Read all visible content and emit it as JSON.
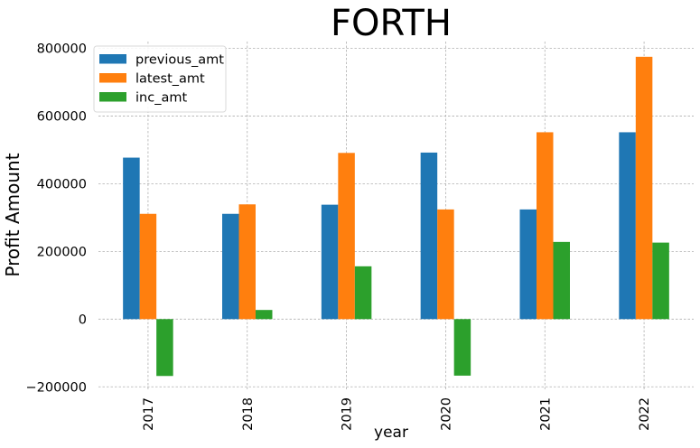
{
  "chart_data": {
    "type": "bar",
    "title": "FORTH",
    "xlabel": "year",
    "ylabel": "Profit Amount",
    "categories": [
      "2017",
      "2018",
      "2019",
      "2020",
      "2021",
      "2022"
    ],
    "series": [
      {
        "name": "previous_amt",
        "color": "#1f77b4",
        "values": [
          477000,
          311000,
          338000,
          492000,
          324000,
          552000
        ]
      },
      {
        "name": "latest_amt",
        "color": "#ff7f0e",
        "values": [
          311000,
          339000,
          491000,
          324000,
          552000,
          775000
        ]
      },
      {
        "name": "inc_amt",
        "color": "#2ca02c",
        "values": [
          -168000,
          27000,
          156000,
          -167000,
          228000,
          226000
        ]
      }
    ],
    "ylim": [
      -210000,
      820000
    ],
    "yticks": [
      -200000,
      0,
      200000,
      400000,
      600000,
      800000
    ],
    "ytick_labels": [
      "−200000",
      "0",
      "200000",
      "400000",
      "600000",
      "800000"
    ],
    "grid": true,
    "legend_position": "top-left"
  }
}
